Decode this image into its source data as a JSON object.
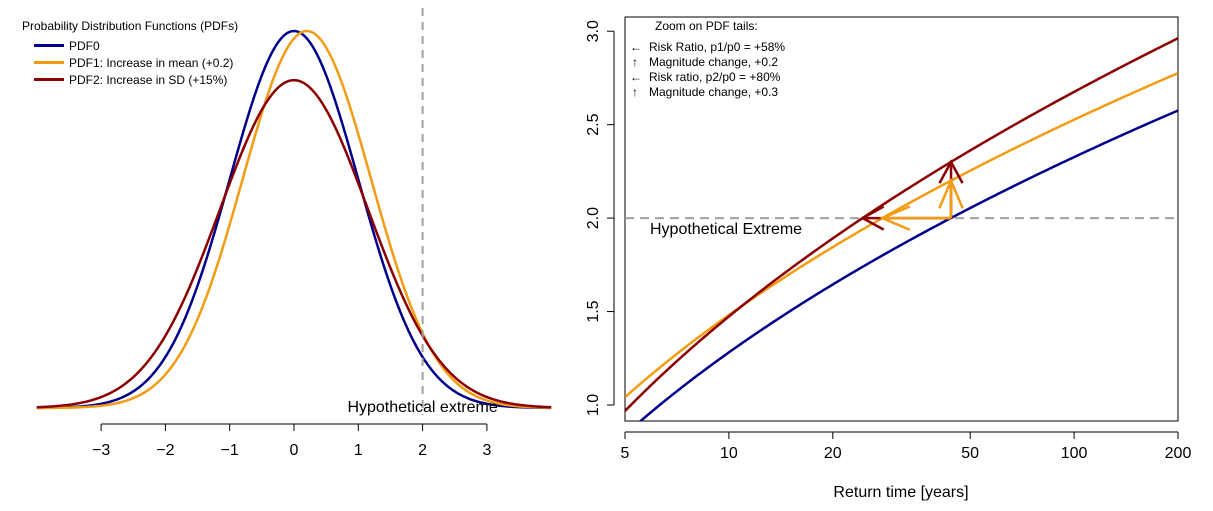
{
  "colors": {
    "pdf0": "#00008B",
    "pdf1": "#F39C12",
    "pdf2": "#8B0000",
    "extreme": "#A0A0A0"
  },
  "chart_data": [
    {
      "type": "line",
      "title": "Probability Distribution Functions (PDFs)",
      "xlim": [
        -4,
        4
      ],
      "xticks": [
        -3,
        -2,
        -1,
        0,
        1,
        2,
        3
      ],
      "xtick_labels": [
        "−3",
        "−2",
        "−1",
        "0",
        "1",
        "2",
        "3"
      ],
      "yaxis_shown": false,
      "legend_position": "top-left",
      "series": [
        {
          "name": "PDF0",
          "color": "pdf0",
          "mean": 0,
          "sd": 1
        },
        {
          "name": "PDF1: Increase in mean (+0.2)",
          "color": "pdf1",
          "mean": 0.2,
          "sd": 1
        },
        {
          "name": "PDF2: Increase in SD (+15%)",
          "color": "pdf2",
          "mean": 0,
          "sd": 1.15
        }
      ],
      "threshold": {
        "x": 2,
        "label": "Hypothetical extreme"
      }
    },
    {
      "type": "line",
      "title": "Zoom on PDF tails:",
      "xlabel": "Return time [years]",
      "xscale": "log",
      "xlim": [
        5,
        200
      ],
      "xticks": [
        5,
        10,
        20,
        50,
        100,
        200
      ],
      "xtick_labels": [
        "5",
        "10",
        "20",
        "50",
        "100",
        "200"
      ],
      "ylim": [
        0.95,
        3.0
      ],
      "yticks": [
        1.0,
        1.5,
        2.0,
        2.5,
        3.0
      ],
      "ytick_labels": [
        "1.0",
        "1.5",
        "2.0",
        "2.5",
        "3.0"
      ],
      "legend_position": "top-left",
      "series": [
        {
          "color": "pdf0",
          "mean": 0,
          "sd": 1
        },
        {
          "color": "pdf1",
          "mean": 0.2,
          "sd": 1
        },
        {
          "color": "pdf2",
          "mean": 0,
          "sd": 1.15
        }
      ],
      "threshold": {
        "y": 2.0,
        "label": "Hypothetical Extreme"
      },
      "legend": [
        {
          "symbol": "←",
          "color": "pdf1",
          "label": "Risk Ratio, p1/p0 = +58%"
        },
        {
          "symbol": "↑",
          "color": "pdf1",
          "label": "Magnitude change, +0.2"
        },
        {
          "symbol": "←",
          "color": "pdf2",
          "label": "Risk ratio, p2/p0 = +80%"
        },
        {
          "symbol": "↑",
          "color": "pdf2",
          "label": "Magnitude change, +0.3"
        }
      ],
      "annotations": {
        "reference_return_time": 44,
        "rr_pdf1_return_time": 27.8,
        "rr_pdf2_return_time": 24.4,
        "magnitude_pdf1": 2.2,
        "magnitude_pdf2": 2.3
      }
    }
  ]
}
